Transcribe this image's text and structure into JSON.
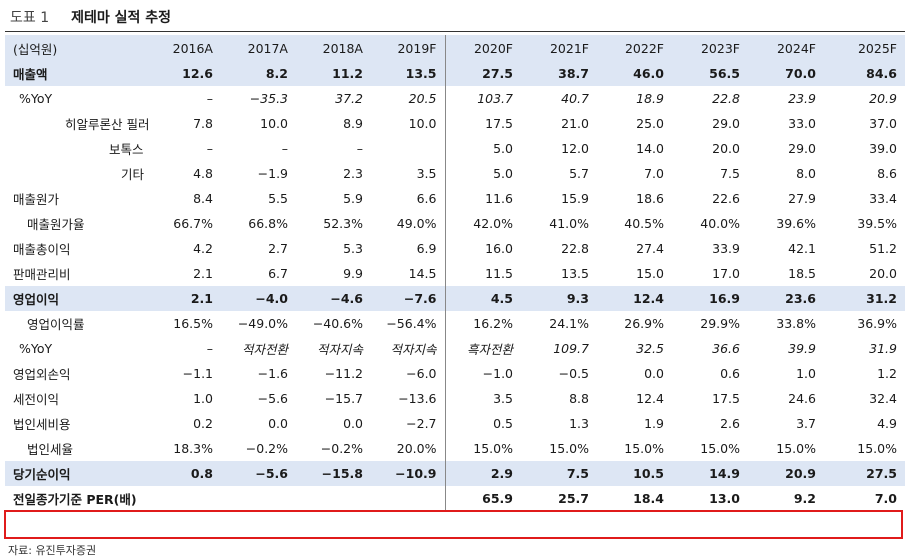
{
  "header": {
    "number": "도표 1",
    "title": "제테마 실적 추정"
  },
  "table": {
    "unit": "(십억원)",
    "columns": [
      "2016A",
      "2017A",
      "2018A",
      "2019F",
      "2020F",
      "2021F",
      "2022F",
      "2023F",
      "2024F",
      "2025F"
    ],
    "rows": [
      {
        "label": "매출액",
        "values": [
          "12.6",
          "8.2",
          "11.2",
          "13.5",
          "27.5",
          "38.7",
          "46.0",
          "56.5",
          "70.0",
          "84.6"
        ]
      },
      {
        "label": "%YoY",
        "values": [
          "–",
          "−35.3",
          "37.2",
          "20.5",
          "103.7",
          "40.7",
          "18.9",
          "22.8",
          "23.9",
          "20.9"
        ]
      },
      {
        "label": "히알루론산 필러",
        "values": [
          "7.8",
          "10.0",
          "8.9",
          "10.0",
          "17.5",
          "21.0",
          "25.0",
          "29.0",
          "33.0",
          "37.0"
        ]
      },
      {
        "label": "보톡스",
        "values": [
          "–",
          "–",
          "–",
          "",
          "5.0",
          "12.0",
          "14.0",
          "20.0",
          "29.0",
          "39.0"
        ]
      },
      {
        "label": "기타",
        "values": [
          "4.8",
          "−1.9",
          "2.3",
          "3.5",
          "5.0",
          "5.7",
          "7.0",
          "7.5",
          "8.0",
          "8.6"
        ]
      },
      {
        "label": "매출원가",
        "values": [
          "8.4",
          "5.5",
          "5.9",
          "6.6",
          "11.6",
          "15.9",
          "18.6",
          "22.6",
          "27.9",
          "33.4"
        ]
      },
      {
        "label": "매출원가율",
        "values": [
          "66.7%",
          "66.8%",
          "52.3%",
          "49.0%",
          "42.0%",
          "41.0%",
          "40.5%",
          "40.0%",
          "39.6%",
          "39.5%"
        ]
      },
      {
        "label": "매출총이익",
        "values": [
          "4.2",
          "2.7",
          "5.3",
          "6.9",
          "16.0",
          "22.8",
          "27.4",
          "33.9",
          "42.1",
          "51.2"
        ]
      },
      {
        "label": "판매관리비",
        "values": [
          "2.1",
          "6.7",
          "9.9",
          "14.5",
          "11.5",
          "13.5",
          "15.0",
          "17.0",
          "18.5",
          "20.0"
        ]
      },
      {
        "label": "영업이익",
        "values": [
          "2.1",
          "−4.0",
          "−4.6",
          "−7.6",
          "4.5",
          "9.3",
          "12.4",
          "16.9",
          "23.6",
          "31.2"
        ]
      },
      {
        "label": "영업이익률",
        "values": [
          "16.5%",
          "−49.0%",
          "−40.6%",
          "−56.4%",
          "16.2%",
          "24.1%",
          "26.9%",
          "29.9%",
          "33.8%",
          "36.9%"
        ]
      },
      {
        "label": "%YoY",
        "values": [
          "–",
          "적자전환",
          "적자지속",
          "적자지속",
          "흑자전환",
          "109.7",
          "32.5",
          "36.6",
          "39.9",
          "31.9"
        ]
      },
      {
        "label": "영업외손익",
        "values": [
          "−1.1",
          "−1.6",
          "−11.2",
          "−6.0",
          "−1.0",
          "−0.5",
          "0.0",
          "0.6",
          "1.0",
          "1.2"
        ]
      },
      {
        "label": "세전이익",
        "values": [
          "1.0",
          "−5.6",
          "−15.7",
          "−13.6",
          "3.5",
          "8.8",
          "12.4",
          "17.5",
          "24.6",
          "32.4"
        ]
      },
      {
        "label": "법인세비용",
        "values": [
          "0.2",
          "0.0",
          "0.0",
          "−2.7",
          "0.5",
          "1.3",
          "1.9",
          "2.6",
          "3.7",
          "4.9"
        ]
      },
      {
        "label": "법인세율",
        "values": [
          "18.3%",
          "−0.2%",
          "−0.2%",
          "20.0%",
          "15.0%",
          "15.0%",
          "15.0%",
          "15.0%",
          "15.0%",
          "15.0%"
        ]
      },
      {
        "label": "당기순이익",
        "values": [
          "0.8",
          "−5.6",
          "−15.8",
          "−10.9",
          "2.9",
          "7.5",
          "10.5",
          "14.9",
          "20.9",
          "27.5"
        ]
      },
      {
        "label": "전일종가기준 PER(배)",
        "values": [
          "",
          "",
          "",
          "",
          "65.9",
          "25.7",
          "18.4",
          "13.0",
          "9.2",
          "7.0"
        ]
      }
    ]
  },
  "source": "자료: 유진투자증권",
  "colors": {
    "header_bg": "#dde6f4",
    "highlight_border": "#e01b1b"
  }
}
